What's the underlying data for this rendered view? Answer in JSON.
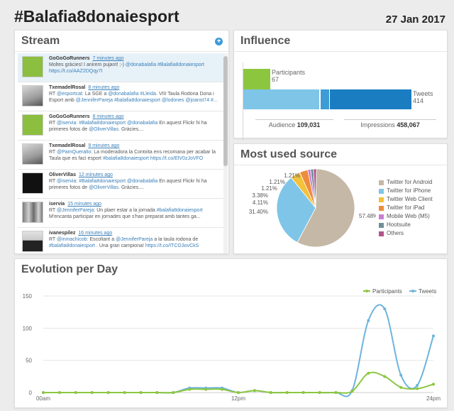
{
  "header": {
    "title": "#Balafia8donaiesport",
    "date": "27 Jan 2017"
  },
  "stream": {
    "title": "Stream",
    "add_icon": "plus-circle-icon",
    "tweets": [
      {
        "user": "GoGoGoRunners",
        "time": "7 minutes ago",
        "text": "Moltes gràcies! I anirem pujant! ;-) @donabalafia #Balafia8donaiesport https://t.co/AAZ2DQqy7I",
        "avatar": "green"
      },
      {
        "user": "TxemadelRosal",
        "time": "8 minutes ago",
        "text": "RT @esportcat: La SGE a @donabalafia #Lleida. VIII Taula Rodona Dona i Esport amb @JenniferPareja #balafia8donaiesport @lodones @joanst74 #...",
        "avatar": "photo"
      },
      {
        "user": "GoGoGoRunners",
        "time": "8 minutes ago",
        "text": "RT @iservia: #Balafia8donaiesport @donabalafia En aquest Flickr hi ha primeres fotos de @OliverVillas. Gràcies....",
        "avatar": "green"
      },
      {
        "user": "TxemadelRosal",
        "time": "9 minutes ago",
        "text": "RT @PamQueralto: La moderadora la Contxita ens recomana per acabar la Taula que es faci esport #balafia8donaiesport https://t.co/ElV0zJoVFO",
        "avatar": "photo"
      },
      {
        "user": "OliverVillas",
        "time": "12 minutes ago",
        "text": "RT @iservia: #Balafia8donaiesport @donabalafia En aquest Flickr hi ha primeres fotos de @OliverVillas. Gràcies....",
        "avatar": "black"
      },
      {
        "user": "iservia",
        "time": "15 minutes ago",
        "text": "RT @JenniferPareja: Un plaer estar a la jornada #balafia8donaiesport M'encanta participar en jornades que s'han preparat amb tantes ga...",
        "avatar": "group"
      },
      {
        "user": "ivanespilez",
        "time": "16 minutes ago",
        "text": "RT @inmachicob: Escoltant a @JenniferPareja a la taula rodona de #balafia8donaiesport . Una gran campiona! https://t.co/ITCG3ovCkS",
        "avatar": "person"
      }
    ]
  },
  "influence": {
    "title": "Influence",
    "participants_label": "Participants",
    "participants_value": "67",
    "participants": 67,
    "tweets_label": "Tweets",
    "tweets_value": "414",
    "tweets": 414,
    "audience_label": "Audience",
    "audience_value": "109,031",
    "impressions_label": "Impressions",
    "impressions_value": "458,067",
    "colors": {
      "participants": "#8cc63f",
      "tweets_light": "#7ec5e8",
      "tweets_mid": "#3d9bd6",
      "tweets_dark": "#1a7cc1"
    }
  },
  "source": {
    "title": "Most used source",
    "chart_data": {
      "type": "pie",
      "slices": [
        {
          "name": "Twitter for Android",
          "value": 57.48,
          "label": "57.48%",
          "color": "#c6b8a6"
        },
        {
          "name": "Twitter for iPhone",
          "value": 31.4,
          "label": "31.40%",
          "color": "#7ec5e8"
        },
        {
          "name": "Twitter Web Client",
          "value": 4.11,
          "label": "4.11%",
          "color": "#f3c13a"
        },
        {
          "name": "Twitter for iPad",
          "value": 3.38,
          "label": "3.38%",
          "color": "#ee8c3b"
        },
        {
          "name": "Mobile Web (M5)",
          "value": 1.21,
          "label": "1.21%",
          "color": "#c97fcf"
        },
        {
          "name": "Hootsuite",
          "value": 1.21,
          "label": "1.21%",
          "color": "#6f8f99"
        },
        {
          "name": "Others",
          "value": 1.21,
          "label": "1.21%",
          "color": "#b1558a"
        }
      ]
    }
  },
  "evolution": {
    "title": "Evolution per Day",
    "chart_data": {
      "type": "line",
      "x": [
        0,
        1,
        2,
        3,
        4,
        5,
        6,
        7,
        8,
        9,
        10,
        11,
        12,
        13,
        14,
        15,
        16,
        17,
        18,
        19,
        20,
        21,
        22,
        23,
        24
      ],
      "xticks": [
        "00am",
        "12pm",
        "24pm"
      ],
      "ylim": [
        0,
        150
      ],
      "yticks": [
        0,
        50,
        100,
        150
      ],
      "legend_position": "top-right",
      "grid": true,
      "series": [
        {
          "name": "Participants",
          "color": "#8cc63f",
          "values": [
            0,
            0,
            0,
            0,
            0,
            0,
            0,
            0,
            0,
            5,
            5,
            5,
            0,
            3,
            0,
            0,
            0,
            0,
            0,
            2,
            30,
            25,
            8,
            6,
            13
          ]
        },
        {
          "name": "Tweets",
          "color": "#6cb4dc",
          "values": [
            0,
            0,
            0,
            0,
            0,
            0,
            0,
            0,
            0,
            7,
            7,
            7,
            0,
            3,
            0,
            0,
            0,
            0,
            0,
            3,
            112,
            130,
            27,
            11,
            88
          ]
        }
      ]
    }
  }
}
